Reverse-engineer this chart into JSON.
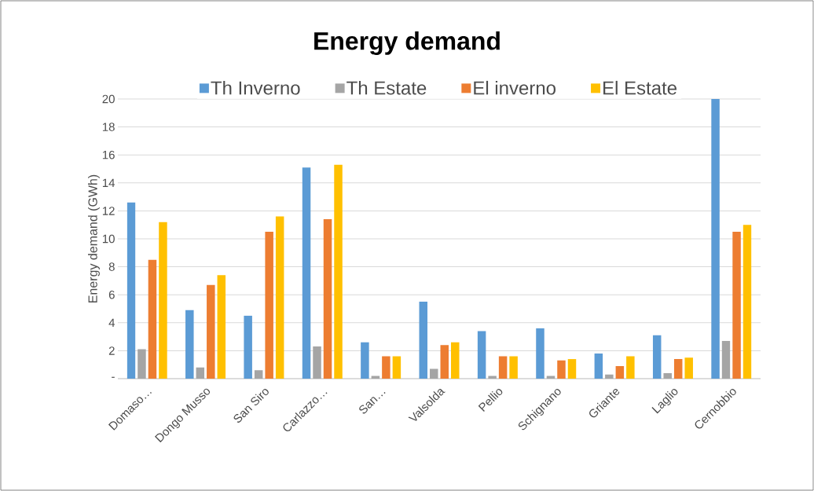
{
  "chart_data": {
    "type": "bar",
    "title": "Energy demand",
    "ylabel": "Energy demand (GWh)",
    "categories": [
      "Domaso…",
      "Dongo Musso",
      "San Siro",
      "Carlazzo…",
      "San…",
      "Valsolda",
      "Pellio",
      "Schignano",
      "Griante",
      "Laglio",
      "Cernobbio"
    ],
    "series": [
      {
        "name": "Th Inverno",
        "color": "#5b9bd5",
        "values": [
          12.6,
          4.9,
          4.5,
          15.1,
          2.6,
          5.5,
          3.4,
          3.6,
          1.8,
          3.1,
          20
        ]
      },
      {
        "name": "Th Estate",
        "color": "#a5a5a5",
        "values": [
          2.1,
          0.8,
          0.6,
          2.3,
          0.2,
          0.7,
          0.2,
          0.2,
          0.3,
          0.4,
          2.7
        ]
      },
      {
        "name": "El inverno",
        "color": "#ed7d31",
        "values": [
          8.5,
          6.7,
          10.5,
          11.4,
          1.6,
          2.4,
          1.6,
          1.3,
          0.9,
          1.4,
          10.5
        ]
      },
      {
        "name": "El Estate",
        "color": "#ffc000",
        "values": [
          11.2,
          7.4,
          11.6,
          15.3,
          1.6,
          2.6,
          1.6,
          1.4,
          1.6,
          1.5,
          11.0
        ]
      }
    ],
    "ylim": [
      0,
      20
    ],
    "yticks": [
      {
        "value": 0,
        "label": "-"
      },
      2,
      4,
      6,
      8,
      10,
      12,
      14,
      16,
      18,
      20
    ],
    "grid": "y",
    "legend": "top"
  }
}
